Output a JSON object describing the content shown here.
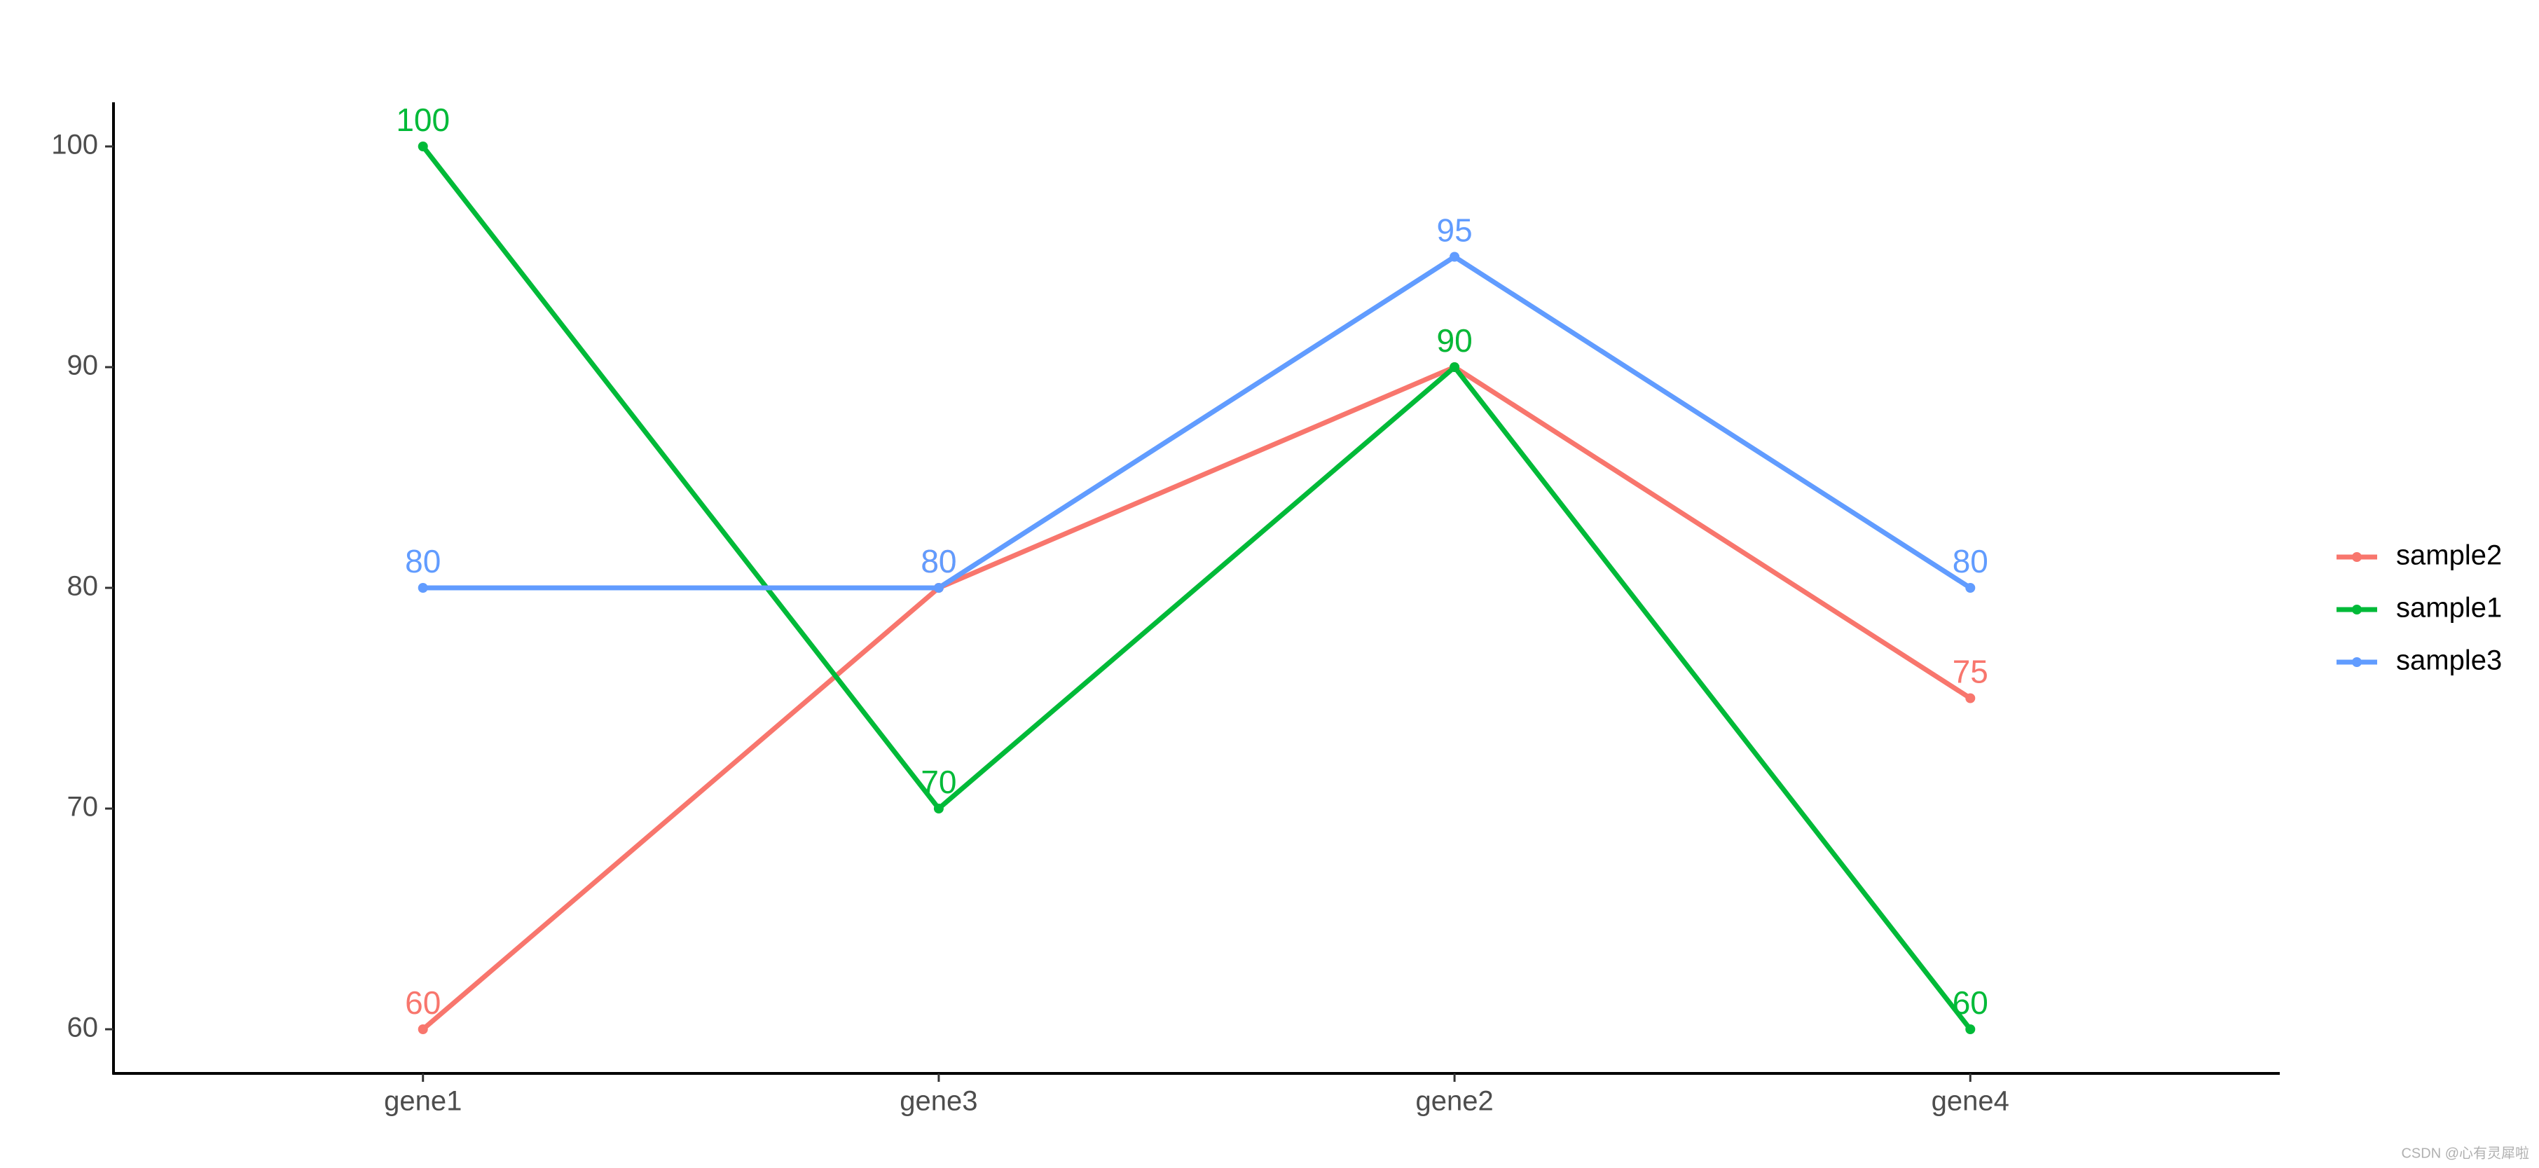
{
  "chart_data": {
    "type": "line",
    "categories": [
      "gene1",
      "gene3",
      "gene2",
      "gene4"
    ],
    "series": [
      {
        "name": "sample2",
        "color": "#F8766D",
        "values": [
          60,
          80,
          90,
          75
        ]
      },
      {
        "name": "sample1",
        "color": "#00BA38",
        "values": [
          100,
          70,
          90,
          60
        ]
      },
      {
        "name": "sample3",
        "color": "#619CFF",
        "values": [
          80,
          80,
          95,
          80
        ]
      }
    ],
    "ylim": [
      58,
      102
    ],
    "yticks": [
      60,
      70,
      80,
      90,
      100
    ],
    "grid": false,
    "legend": "right",
    "watermark": "CSDN @心有灵犀啦"
  }
}
